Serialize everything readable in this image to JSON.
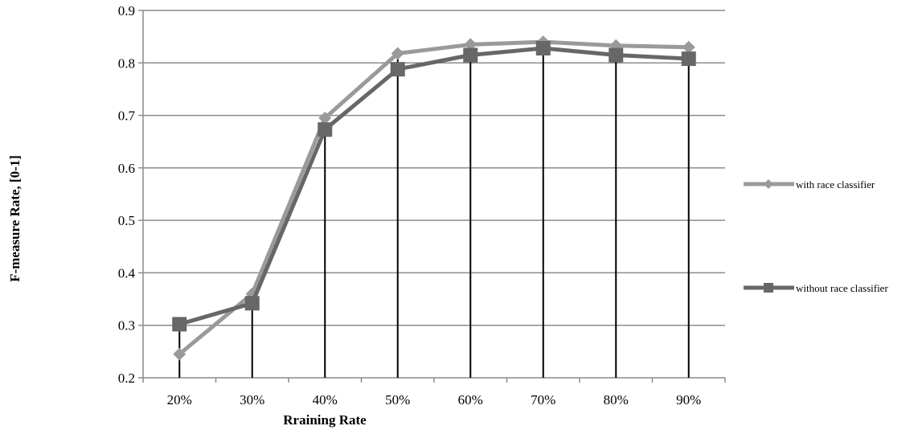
{
  "chart_data": {
    "type": "line",
    "title": "",
    "xlabel": "Rraining Rate",
    "ylabel": "F-measure Rate, [0-1]",
    "categories": [
      "20%",
      "30%",
      "40%",
      "50%",
      "60%",
      "70%",
      "80%",
      "90%"
    ],
    "ylim": [
      0.2,
      0.9
    ],
    "yticks": [
      "0.2",
      "0.3",
      "0.4",
      "0.5",
      "0.6",
      "0.7",
      "0.8",
      "0.9"
    ],
    "grid": true,
    "legend_position": "right",
    "series": [
      {
        "name": "with race classifier",
        "marker": "diamond",
        "color": "#9a9a9a",
        "values": [
          0.245,
          0.36,
          0.695,
          0.818,
          0.835,
          0.84,
          0.833,
          0.83
        ]
      },
      {
        "name": "without race classifier",
        "marker": "square",
        "color": "#676767",
        "values": [
          0.302,
          0.342,
          0.673,
          0.788,
          0.815,
          0.828,
          0.815,
          0.808
        ]
      }
    ]
  }
}
